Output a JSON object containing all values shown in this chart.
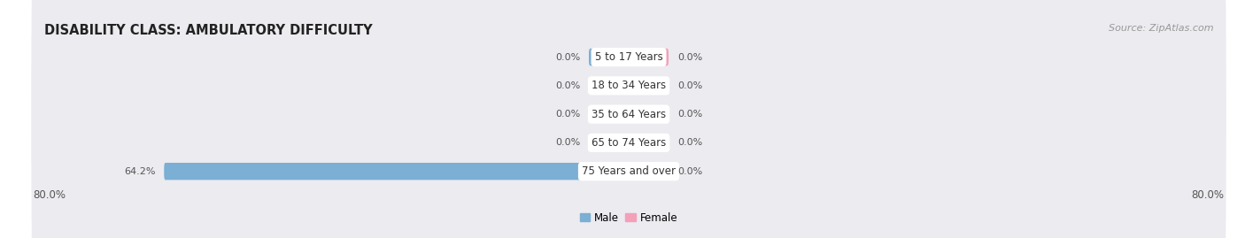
{
  "title": "DISABILITY CLASS: AMBULATORY DIFFICULTY",
  "source": "Source: ZipAtlas.com",
  "categories": [
    "5 to 17 Years",
    "18 to 34 Years",
    "35 to 64 Years",
    "65 to 74 Years",
    "75 Years and over"
  ],
  "male_values": [
    0.0,
    0.0,
    0.0,
    0.0,
    64.2
  ],
  "female_values": [
    0.0,
    0.0,
    0.0,
    0.0,
    0.0
  ],
  "male_labels": [
    "0.0%",
    "0.0%",
    "0.0%",
    "0.0%",
    "64.2%"
  ],
  "female_labels": [
    "0.0%",
    "0.0%",
    "0.0%",
    "0.0%",
    "0.0%"
  ],
  "xlim": 80.0,
  "male_color": "#7bafd4",
  "female_color": "#f4a0b8",
  "row_bg_color": "#ebebf0",
  "row_bg_color_alt": "#f5f5f8",
  "title_fontsize": 10.5,
  "source_fontsize": 8,
  "label_fontsize": 8,
  "category_fontsize": 8.5,
  "axis_label_fontsize": 8.5,
  "legend_fontsize": 8.5,
  "stub_size": 5.5
}
